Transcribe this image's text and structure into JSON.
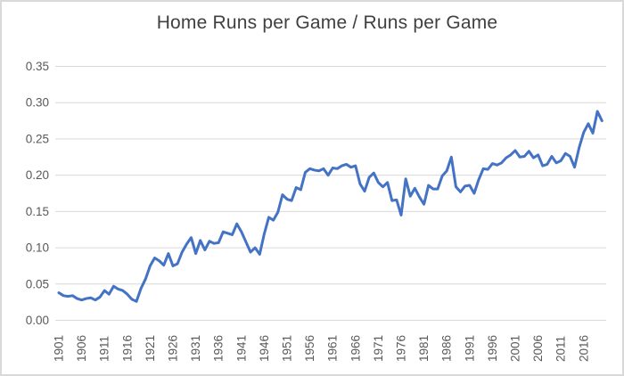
{
  "window": {
    "background_color": "#ffffff",
    "border_color": "#d9d9d9"
  },
  "chart_data": {
    "type": "line",
    "title": "Home Runs per Game / Runs per Game",
    "xlabel": "",
    "ylabel": "",
    "legend": "none",
    "grid": true,
    "ylim": [
      0,
      0.35
    ],
    "y_tick_labels": [
      "0.00",
      "0.05",
      "0.10",
      "0.15",
      "0.20",
      "0.25",
      "0.30",
      "0.35"
    ],
    "x_tick_labels": [
      "1901",
      "1906",
      "1911",
      "1916",
      "1921",
      "1926",
      "1931",
      "1936",
      "1941",
      "1946",
      "1951",
      "1956",
      "1961",
      "1966",
      "1971",
      "1976",
      "1981",
      "1986",
      "1991",
      "1996",
      "2001",
      "2006",
      "2011",
      "2016"
    ],
    "x_tick_step_years": 5,
    "series": [
      {
        "name": "Home Runs per Game / Runs per Game",
        "start_year": 1901,
        "end_year": 2020,
        "values": [
          0.038,
          0.034,
          0.033,
          0.034,
          0.03,
          0.028,
          0.03,
          0.031,
          0.028,
          0.032,
          0.041,
          0.036,
          0.047,
          0.043,
          0.041,
          0.036,
          0.029,
          0.026,
          0.044,
          0.057,
          0.075,
          0.086,
          0.082,
          0.076,
          0.092,
          0.075,
          0.078,
          0.094,
          0.105,
          0.114,
          0.092,
          0.11,
          0.097,
          0.109,
          0.106,
          0.107,
          0.122,
          0.12,
          0.118,
          0.133,
          0.122,
          0.108,
          0.094,
          0.1,
          0.091,
          0.119,
          0.142,
          0.138,
          0.149,
          0.173,
          0.167,
          0.165,
          0.183,
          0.18,
          0.204,
          0.209,
          0.207,
          0.206,
          0.209,
          0.2,
          0.21,
          0.209,
          0.213,
          0.215,
          0.211,
          0.213,
          0.188,
          0.178,
          0.197,
          0.203,
          0.19,
          0.184,
          0.19,
          0.165,
          0.166,
          0.145,
          0.195,
          0.171,
          0.182,
          0.17,
          0.16,
          0.186,
          0.181,
          0.181,
          0.199,
          0.206,
          0.225,
          0.184,
          0.177,
          0.185,
          0.186,
          0.175,
          0.194,
          0.209,
          0.208,
          0.216,
          0.214,
          0.217,
          0.224,
          0.228,
          0.234,
          0.225,
          0.226,
          0.233,
          0.224,
          0.228,
          0.213,
          0.215,
          0.226,
          0.217,
          0.22,
          0.23,
          0.226,
          0.211,
          0.238,
          0.259,
          0.271,
          0.258,
          0.288,
          0.275
        ]
      }
    ],
    "line_color": "#4472C4",
    "gridline_color": "#D9D9D9",
    "tick_label_color": "#595959",
    "title_color": "#404040"
  }
}
